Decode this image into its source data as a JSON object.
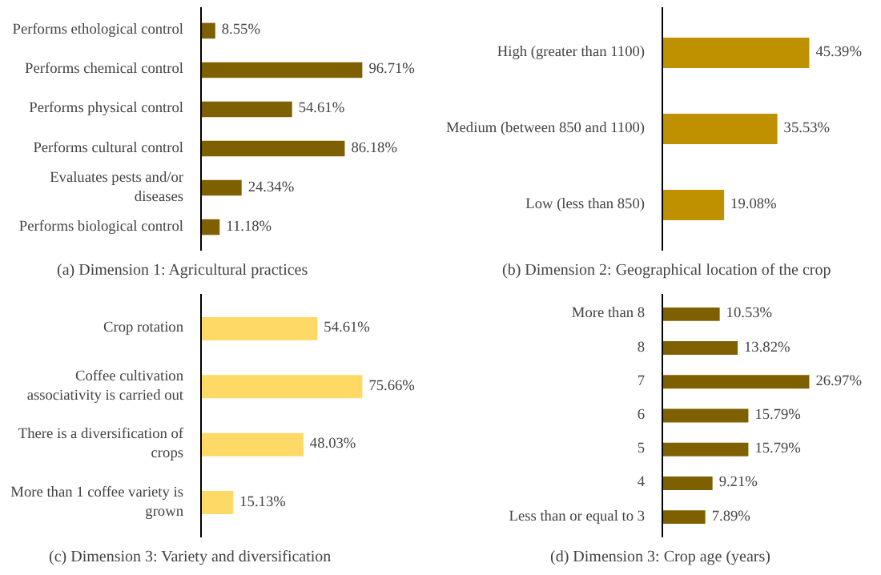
{
  "chart_data": [
    {
      "type": "bar",
      "orientation": "horizontal",
      "title": "(a) Dimension 1: Agricultural practices",
      "categories": [
        "Performs ethological control",
        "Performs chemical control",
        "Performs physical control",
        "Performs cultural control",
        "Evaluates pests and/or diseases",
        "Performs biological control"
      ],
      "values": [
        8.55,
        96.71,
        54.61,
        86.18,
        24.34,
        11.18
      ],
      "color": "#7f6000",
      "value_labels": [
        "8.55%",
        "96.71%",
        "54.61%",
        "86.18%",
        "24.34%",
        "11.18%"
      ],
      "grid": false,
      "legend": false
    },
    {
      "type": "bar",
      "orientation": "horizontal",
      "title": "(b) Dimension 2: Geographical location of the crop",
      "categories": [
        "High (greater than 1100)",
        "Medium (between 850 and 1100)",
        "Low (less than 850)"
      ],
      "values": [
        45.39,
        35.53,
        19.08
      ],
      "color": "#bf9000",
      "value_labels": [
        "45.39%",
        "35.53%",
        "19.08%"
      ],
      "grid": false,
      "legend": false
    },
    {
      "type": "bar",
      "orientation": "horizontal",
      "title": "(c) Dimension 3: Variety and diversification",
      "categories": [
        "Crop rotation",
        "Coffee cultivation associativity is carried out",
        "There is a diversification of crops",
        "More than 1 coffee variety is grown"
      ],
      "values": [
        54.61,
        75.66,
        48.03,
        15.13
      ],
      "color": "#ffd966",
      "value_labels": [
        "54.61%",
        "75.66%",
        "48.03%",
        "15.13%"
      ],
      "grid": false,
      "legend": false
    },
    {
      "type": "bar",
      "orientation": "horizontal",
      "title": "(d) Dimension 3: Crop age (years)",
      "categories": [
        "More than 8",
        "8",
        "7",
        "6",
        "5",
        "4",
        "Less than or equal to 3"
      ],
      "values": [
        10.53,
        13.82,
        26.97,
        15.79,
        15.79,
        9.21,
        7.89
      ],
      "color": "#7f6000",
      "value_labels": [
        "10.53%",
        "13.82%",
        "26.97%",
        "15.79%",
        "15.79%",
        "9.21%",
        "7.89%"
      ],
      "grid": false,
      "legend": false
    }
  ]
}
